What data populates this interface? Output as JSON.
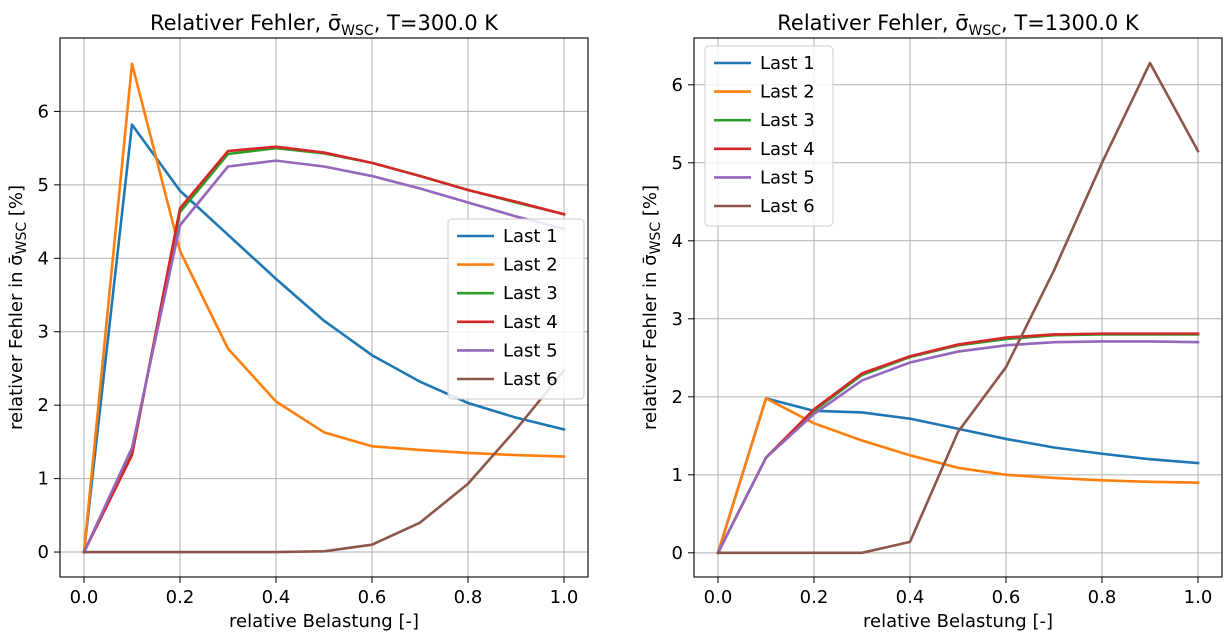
{
  "chart_data": [
    {
      "type": "line",
      "title": "Relativer Fehler, σ̄WSC, T=300.0 K",
      "title_parts": {
        "pre": "Relativer Fehler, ",
        "sigma": "σ̄",
        "sub": "WSC",
        "post": ", T=300.0 K"
      },
      "xlabel": "relative Belastung [-]",
      "ylabel": "relativer Fehler in σ̄WSC [%]",
      "ylabel_parts": {
        "pre": "relativer Fehler in ",
        "sigma": "σ̄",
        "sub": "WSC",
        "post": " [%]"
      },
      "xlim": [
        -0.05,
        1.05
      ],
      "ylim": [
        -0.34,
        7.0
      ],
      "xticks": [
        0.0,
        0.2,
        0.4,
        0.6,
        0.8,
        1.0
      ],
      "xtick_labels": [
        "0.0",
        "0.2",
        "0.4",
        "0.6",
        "0.8",
        "1.0"
      ],
      "yticks": [
        0,
        1,
        2,
        3,
        4,
        5,
        6
      ],
      "ytick_labels": [
        "0",
        "1",
        "2",
        "3",
        "4",
        "5",
        "6"
      ],
      "grid": true,
      "legend_position": "center-right",
      "x": [
        0.0,
        0.1,
        0.2,
        0.3,
        0.4,
        0.5,
        0.6,
        0.7,
        0.8,
        0.9,
        1.0
      ],
      "series": [
        {
          "name": "Last 1",
          "color": "#1f77b4",
          "values": [
            0.0,
            5.82,
            4.92,
            4.32,
            3.72,
            3.15,
            2.68,
            2.32,
            2.03,
            1.83,
            1.67
          ]
        },
        {
          "name": "Last 2",
          "color": "#ff7f0e",
          "values": [
            0.0,
            6.65,
            4.1,
            2.77,
            2.05,
            1.63,
            1.44,
            1.39,
            1.35,
            1.32,
            1.3
          ]
        },
        {
          "name": "Last 3",
          "color": "#2ca02c",
          "values": [
            0.0,
            1.35,
            4.63,
            5.42,
            5.5,
            5.43,
            5.3,
            5.12,
            4.93,
            4.76,
            4.6
          ]
        },
        {
          "name": "Last 4",
          "color": "#d62728",
          "values": [
            0.0,
            1.32,
            4.68,
            5.46,
            5.52,
            5.44,
            5.3,
            5.12,
            4.93,
            4.77,
            4.6
          ]
        },
        {
          "name": "Last 5",
          "color": "#9467bd",
          "values": [
            0.0,
            1.42,
            4.45,
            5.25,
            5.33,
            5.25,
            5.12,
            4.95,
            4.76,
            4.57,
            4.4
          ]
        },
        {
          "name": "Last 6",
          "color": "#8c564b",
          "values": [
            0.0,
            0.0,
            0.0,
            0.0,
            0.0,
            0.01,
            0.1,
            0.4,
            0.93,
            1.67,
            2.47
          ]
        }
      ]
    },
    {
      "type": "line",
      "title": "Relativer Fehler, σ̄WSC, T=1300.0 K",
      "title_parts": {
        "pre": "Relativer Fehler, ",
        "sigma": "σ̄",
        "sub": "WSC",
        "post": ", T=1300.0 K"
      },
      "xlabel": "relative Belastung [-]",
      "ylabel": "relativer Fehler in σ̄WSC [%]",
      "ylabel_parts": {
        "pre": "relativer Fehler in ",
        "sigma": "σ̄",
        "sub": "WSC",
        "post": " [%]"
      },
      "xlim": [
        -0.05,
        1.05
      ],
      "ylim": [
        -0.31,
        6.6
      ],
      "xticks": [
        0.0,
        0.2,
        0.4,
        0.6,
        0.8,
        1.0
      ],
      "xtick_labels": [
        "0.0",
        "0.2",
        "0.4",
        "0.6",
        "0.8",
        "1.0"
      ],
      "yticks": [
        0,
        1,
        2,
        3,
        4,
        5,
        6
      ],
      "ytick_labels": [
        "0",
        "1",
        "2",
        "3",
        "4",
        "5",
        "6"
      ],
      "grid": true,
      "legend_position": "upper-left",
      "x": [
        0.0,
        0.1,
        0.2,
        0.3,
        0.4,
        0.5,
        0.6,
        0.7,
        0.8,
        0.9,
        1.0
      ],
      "series": [
        {
          "name": "Last 1",
          "color": "#1f77b4",
          "values": [
            0.0,
            1.98,
            1.82,
            1.8,
            1.72,
            1.59,
            1.46,
            1.35,
            1.27,
            1.2,
            1.15
          ]
        },
        {
          "name": "Last 2",
          "color": "#ff7f0e",
          "values": [
            0.0,
            1.98,
            1.66,
            1.44,
            1.25,
            1.09,
            1.0,
            0.96,
            0.93,
            0.91,
            0.9
          ]
        },
        {
          "name": "Last 3",
          "color": "#2ca02c",
          "values": [
            0.0,
            1.22,
            1.82,
            2.28,
            2.51,
            2.66,
            2.74,
            2.79,
            2.8,
            2.8,
            2.8
          ]
        },
        {
          "name": "Last 4",
          "color": "#d62728",
          "values": [
            0.0,
            1.22,
            1.84,
            2.3,
            2.52,
            2.67,
            2.76,
            2.8,
            2.81,
            2.81,
            2.81
          ]
        },
        {
          "name": "Last 5",
          "color": "#9467bd",
          "values": [
            0.0,
            1.22,
            1.78,
            2.21,
            2.44,
            2.58,
            2.66,
            2.7,
            2.71,
            2.71,
            2.7
          ]
        },
        {
          "name": "Last 6",
          "color": "#8c564b",
          "values": [
            0.0,
            0.0,
            0.0,
            0.0,
            0.14,
            1.55,
            2.38,
            3.62,
            5.0,
            6.28,
            5.15
          ]
        }
      ]
    }
  ]
}
